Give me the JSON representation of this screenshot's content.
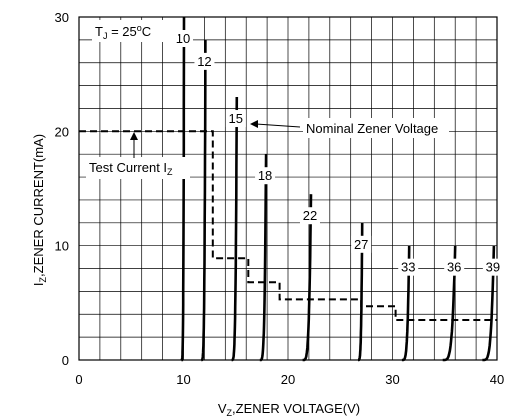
{
  "chart_data": {
    "type": "line",
    "xlabel_main": "V",
    "xlabel_sub": "Z",
    "xlabel_rest": ",ZENER VOLTAGE(V)",
    "ylabel_main": "I",
    "ylabel_sub": "Z",
    "ylabel_rest": ",ZENER CURRENT(mA)",
    "xlim": [
      0,
      40
    ],
    "ylim": [
      0,
      30
    ],
    "x_ticks": [
      0,
      10,
      20,
      30,
      40
    ],
    "y_ticks": [
      0,
      10,
      20,
      30
    ],
    "grid": true,
    "grid_x_step": 2,
    "grid_y_step": 2,
    "annotations": {
      "temperature_main": "T",
      "temperature_sub": "J",
      "temperature_rest": " = 25",
      "temperature_sup": "o",
      "temperature_unit": "C",
      "nominal_label": "Nominal Zener Voltage",
      "test_current_main": "Test Current I",
      "test_current_sub": "Z"
    },
    "series": [
      {
        "label": "10",
        "knee_x": 9.8,
        "peak_x": 10.05,
        "peak_y": 30.0
      },
      {
        "label": "12",
        "knee_x": 11.7,
        "peak_x": 12.1,
        "peak_y": 28.0
      },
      {
        "label": "15",
        "knee_x": 14.6,
        "peak_x": 15.1,
        "peak_y": 23.0
      },
      {
        "label": "18",
        "knee_x": 17.3,
        "peak_x": 17.9,
        "peak_y": 18.0
      },
      {
        "label": "22",
        "knee_x": 21.4,
        "peak_x": 22.2,
        "peak_y": 14.5
      },
      {
        "label": "27",
        "knee_x": 26.7,
        "peak_x": 27.1,
        "peak_y": 12.0
      },
      {
        "label": "33",
        "knee_x": 30.9,
        "peak_x": 31.6,
        "peak_y": 10.0
      },
      {
        "label": "36",
        "knee_x": 34.8,
        "peak_x": 36.0,
        "peak_y": 10.0
      },
      {
        "label": "39",
        "knee_x": 38.6,
        "peak_x": 39.7,
        "peak_y": 10.0
      }
    ],
    "test_current_path": [
      [
        0,
        20.0
      ],
      [
        12.8,
        20.0
      ],
      [
        12.8,
        8.9
      ],
      [
        16.2,
        8.9
      ],
      [
        16.2,
        6.8
      ],
      [
        19.2,
        6.8
      ],
      [
        19.2,
        5.3
      ],
      [
        27.0,
        5.3
      ],
      [
        27.0,
        4.7
      ],
      [
        30.3,
        4.7
      ],
      [
        30.3,
        3.5
      ],
      [
        40.0,
        3.5
      ]
    ]
  }
}
